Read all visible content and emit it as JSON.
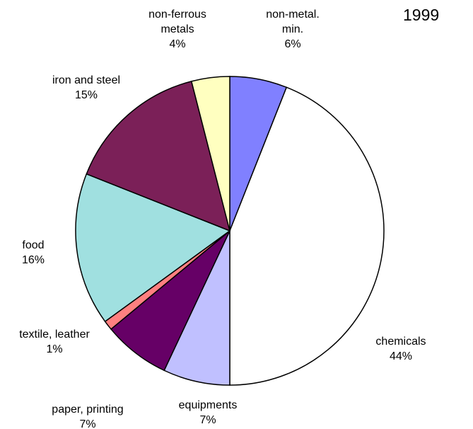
{
  "chart_data": {
    "type": "pie",
    "title": "1999",
    "categories": [
      "non-metal. min.",
      "chemicals",
      "equipments",
      "paper, printing",
      "textile, leather",
      "food",
      "iron and steel",
      "non-ferrous metals"
    ],
    "values": [
      6,
      44,
      7,
      7,
      1,
      16,
      15,
      4
    ],
    "value_labels": [
      "6%",
      "44%",
      "7%",
      "7%",
      "1%",
      "16%",
      "15%",
      "4%"
    ],
    "colors": [
      "#8080ff",
      "#ffffff",
      "#c0c0ff",
      "#660066",
      "#ff8080",
      "#a0e0e0",
      "#7b2058",
      "#ffffc0"
    ]
  }
}
